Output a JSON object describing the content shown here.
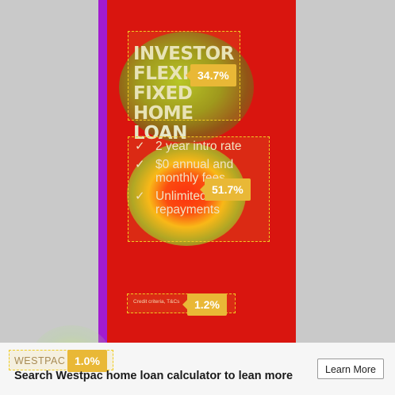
{
  "ad": {
    "headline": [
      "INVESTOR",
      "FLEXI FIXED",
      "HOME LOAN"
    ],
    "bullets": [
      {
        "lines": [
          "2 year intro rate"
        ]
      },
      {
        "lines": [
          "$0 annual and",
          "monthly fees"
        ]
      },
      {
        "lines": [
          "Unlimited extra",
          "repayments"
        ]
      }
    ],
    "check_icon": "checkmark-icon",
    "credit_text": "Credit criteria, T&Cs",
    "colors": {
      "background": "#d9150f",
      "accent_stripe": "#a21bd0"
    }
  },
  "heatmap": {
    "areas": [
      {
        "name": "headline",
        "percent": "34.7%"
      },
      {
        "name": "bullets",
        "percent": "51.7%"
      },
      {
        "name": "credit",
        "percent": "1.2%"
      },
      {
        "name": "brand",
        "percent": "1.0%"
      }
    ],
    "badge_color": "#e9b836",
    "outline_color": "#f0cc22"
  },
  "footer": {
    "brand": "WESTPAC",
    "cta_text": "Search Westpac home loan calculator to lean more",
    "button_label": "Learn More"
  }
}
